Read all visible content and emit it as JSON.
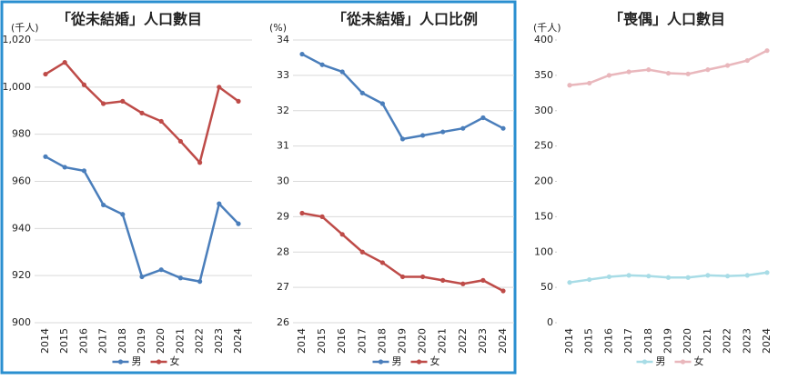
{
  "chart_data": [
    {
      "type": "line",
      "title": "「從未結婚」人口數目",
      "y_label": "(千人)",
      "categories": [
        "2014",
        "2015",
        "2016",
        "2017",
        "2018",
        "2019",
        "2020",
        "2021",
        "2022",
        "2023",
        "2024"
      ],
      "ylim": [
        900,
        1020
      ],
      "yticks": [
        900,
        920,
        940,
        960,
        980,
        {
          "value": 1000,
          "label": "1,000"
        },
        {
          "value": 1020,
          "label": "1,020"
        }
      ],
      "grid": true,
      "series": [
        {
          "name": "男",
          "color": "#4a7ebb",
          "values": [
            970.5,
            966,
            964.5,
            950,
            946,
            919.5,
            922.5,
            919,
            917.5,
            950.5,
            942
          ]
        },
        {
          "name": "女",
          "color": "#be4b48",
          "values": [
            1005.5,
            1010.5,
            1001,
            993,
            994,
            989,
            985.5,
            977,
            968,
            1000,
            994
          ]
        }
      ]
    },
    {
      "type": "line",
      "title": "「從未結婚」人口比例",
      "y_label": "(%)",
      "categories": [
        "2014",
        "2015",
        "2016",
        "2017",
        "2018",
        "2019",
        "2020",
        "2021",
        "2022",
        "2023",
        "2024"
      ],
      "ylim": [
        26,
        34
      ],
      "yticks": [
        26,
        27,
        28,
        29,
        30,
        31,
        32,
        33,
        34
      ],
      "grid": true,
      "series": [
        {
          "name": "男",
          "color": "#4a7ebb",
          "values": [
            33.6,
            33.3,
            33.1,
            32.5,
            32.2,
            31.2,
            31.3,
            31.4,
            31.5,
            31.8,
            31.5
          ]
        },
        {
          "name": "女",
          "color": "#be4b48",
          "values": [
            29.1,
            29.0,
            28.5,
            28.0,
            27.7,
            27.3,
            27.3,
            27.2,
            27.1,
            27.2,
            26.9
          ]
        }
      ]
    },
    {
      "type": "line",
      "title": "「喪偶」人口數目",
      "y_label": "(千人)",
      "categories": [
        "2014",
        "2015",
        "2016",
        "2017",
        "2018",
        "2019",
        "2020",
        "2021",
        "2022",
        "2023",
        "2024"
      ],
      "ylim": [
        0,
        400
      ],
      "yticks": [
        0,
        50,
        100,
        150,
        200,
        250,
        300,
        350,
        400
      ],
      "grid": false,
      "series": [
        {
          "name": "男",
          "color": "#a8dce6",
          "values": [
            57,
            61,
            65,
            67,
            66,
            64,
            64,
            67,
            66,
            67,
            71
          ]
        },
        {
          "name": "女",
          "color": "#e9b7bc",
          "values": [
            336,
            339,
            350,
            355,
            358,
            353,
            352,
            358,
            364,
            371,
            385
          ]
        }
      ]
    }
  ]
}
